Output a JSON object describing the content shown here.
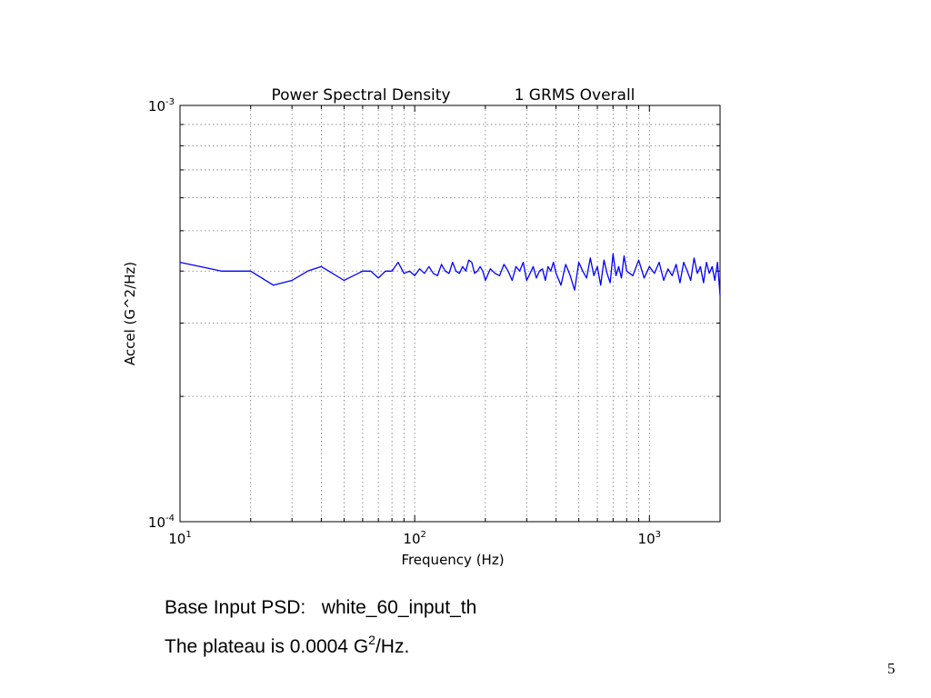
{
  "slide": {
    "base_input_label": "Base Input PSD:",
    "base_input_value": "white_60_input_th",
    "plateau_prefix": "The plateau is 0.0004 G",
    "plateau_sup": "2",
    "plateau_suffix": "/Hz.",
    "page_number": "5"
  },
  "chart_data": {
    "type": "line",
    "title_left": "Power Spectral Density",
    "title_right": "1 GRMS Overall",
    "xlabel": "Frequency (Hz)",
    "ylabel": "Accel (G^2/Hz)",
    "xscale": "log",
    "yscale": "log",
    "xlim": [
      10,
      2000
    ],
    "ylim": [
      0.0001,
      0.001
    ],
    "grid": true,
    "line_color": "#0000ff",
    "x_ticks": [
      {
        "value": 10,
        "base": "10",
        "exp": "1"
      },
      {
        "value": 100,
        "base": "10",
        "exp": "2"
      },
      {
        "value": 1000,
        "base": "10",
        "exp": "3"
      }
    ],
    "y_ticks": [
      {
        "value": 0.0001,
        "base": "10",
        "exp": "-4"
      },
      {
        "value": 0.001,
        "base": "10",
        "exp": "-3"
      }
    ],
    "series": [
      {
        "x": [
          10,
          15,
          20,
          25,
          30,
          35,
          40,
          50,
          60,
          65,
          70,
          75,
          80,
          85,
          90,
          95,
          100,
          105,
          110,
          115,
          120,
          125,
          130,
          135,
          140,
          145,
          150,
          155,
          160,
          165,
          170,
          175,
          180,
          185,
          190,
          195,
          200,
          210,
          220,
          230,
          240,
          250,
          260,
          270,
          280,
          290,
          300,
          310,
          320,
          330,
          340,
          350,
          360,
          370,
          380,
          390,
          400,
          420,
          440,
          460,
          480,
          500,
          520,
          540,
          560,
          580,
          600,
          620,
          640,
          660,
          680,
          700,
          720,
          740,
          760,
          780,
          800,
          850,
          900,
          950,
          1000,
          1050,
          1100,
          1150,
          1200,
          1250,
          1300,
          1350,
          1400,
          1450,
          1500,
          1550,
          1600,
          1650,
          1700,
          1750,
          1800,
          1850,
          1900,
          1950,
          2000
        ],
        "y": [
          0.00042,
          0.0004,
          0.0004,
          0.00037,
          0.00038,
          0.0004,
          0.00041,
          0.00038,
          0.0004,
          0.0004,
          0.000385,
          0.0004,
          0.0004,
          0.00042,
          0.000395,
          0.0004,
          0.00039,
          0.000405,
          0.000395,
          0.00041,
          0.000395,
          0.00039,
          0.000415,
          0.0004,
          0.000395,
          0.00042,
          0.0004,
          0.000395,
          0.00041,
          0.0004,
          0.000425,
          0.00042,
          0.000395,
          0.0004,
          0.00041,
          0.0004,
          0.00038,
          0.000405,
          0.000395,
          0.00039,
          0.000415,
          0.0004,
          0.00038,
          0.00041,
          0.0004,
          0.00042,
          0.00038,
          0.000395,
          0.00041,
          0.000385,
          0.0004,
          0.000405,
          0.00038,
          0.00041,
          0.0004,
          0.00042,
          0.000395,
          0.00037,
          0.000415,
          0.00039,
          0.00036,
          0.00042,
          0.0004,
          0.000385,
          0.00043,
          0.00039,
          0.00041,
          0.00037,
          0.000425,
          0.000395,
          0.000375,
          0.00044,
          0.00039,
          0.00041,
          0.000385,
          0.000435,
          0.0004,
          0.00039,
          0.000425,
          0.000385,
          0.00041,
          0.000395,
          0.00042,
          0.00038,
          0.000405,
          0.00039,
          0.000415,
          0.000375,
          0.00042,
          0.0004,
          0.00038,
          0.00043,
          0.000395,
          0.00041,
          0.000375,
          0.00042,
          0.000395,
          0.00041,
          0.00038,
          0.00042,
          0.00035
        ]
      }
    ]
  }
}
